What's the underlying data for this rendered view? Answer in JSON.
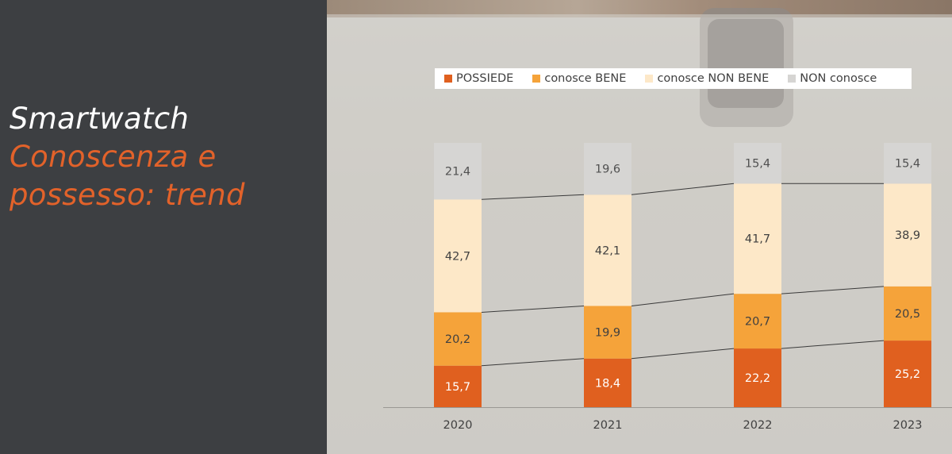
{
  "title": {
    "line1": "Smartwatch",
    "line2": "Conoscenza e",
    "line3": "possesso: trend"
  },
  "legend": [
    {
      "label": "POSSIEDE",
      "color": "#e0601f"
    },
    {
      "label": "conosce BENE",
      "color": "#f5a33a"
    },
    {
      "label": "conosce NON BENE",
      "color": "#fde8c8"
    },
    {
      "label": "NON conosce",
      "color": "#d6d5d3"
    }
  ],
  "chart_data": {
    "type": "bar",
    "stacked": true,
    "categories": [
      "2020",
      "2021",
      "2022",
      "2023"
    ],
    "series": [
      {
        "name": "POSSIEDE",
        "color": "#e0601f",
        "label_color": "#ffffff",
        "values": [
          15.7,
          18.4,
          22.2,
          25.2
        ],
        "labels": [
          "15,7",
          "18,4",
          "22,2",
          "25,2"
        ]
      },
      {
        "name": "conosce BENE",
        "color": "#f5a33a",
        "label_color": "#404040",
        "values": [
          20.2,
          19.9,
          20.7,
          20.5
        ],
        "labels": [
          "20,2",
          "19,9",
          "20,7",
          "20,5"
        ]
      },
      {
        "name": "conosce NON BENE",
        "color": "#fde8c8",
        "label_color": "#404040",
        "values": [
          42.7,
          42.1,
          41.7,
          38.9
        ],
        "labels": [
          "42,7",
          "42,1",
          "41,7",
          "38,9"
        ]
      },
      {
        "name": "NON conosce",
        "color": "#d6d5d3",
        "label_color": "#505050",
        "values": [
          21.4,
          19.6,
          15.4,
          15.4
        ],
        "labels": [
          "21,4",
          "19,6",
          "15,4",
          "15,4"
        ]
      }
    ],
    "ylim": [
      0,
      100
    ],
    "series_lines": true,
    "legend_position": "top"
  }
}
